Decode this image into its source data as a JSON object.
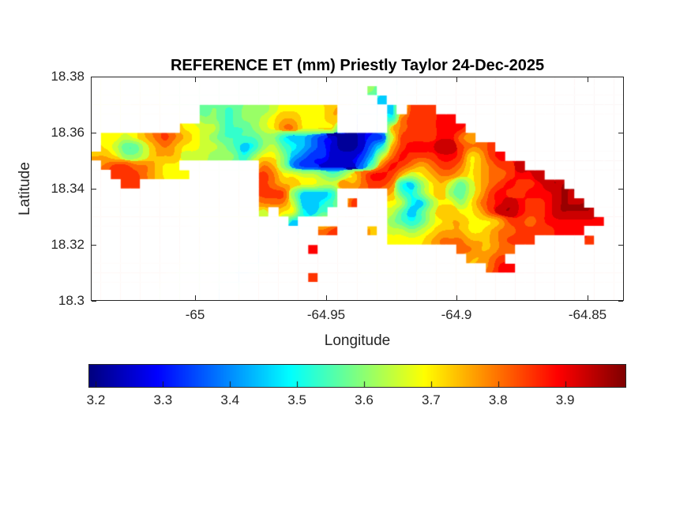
{
  "chart_data": {
    "type": "filled_contour_map",
    "title": "REFERENCE ET (mm) Priestly Taylor 24-Dec-2025",
    "xlabel": "Longitude",
    "ylabel": "Latitude",
    "units": "mm",
    "xlim": [
      -65.0399,
      -64.8361
    ],
    "ylim": [
      18.3,
      18.38
    ],
    "x_ticks": [
      {
        "v": -65,
        "label": "-65"
      },
      {
        "v": -64.95,
        "label": "-64.95"
      },
      {
        "v": -64.9,
        "label": "-64.9"
      },
      {
        "v": -64.85,
        "label": "-64.85"
      }
    ],
    "y_ticks": [
      {
        "v": 18.38,
        "label": "18.38"
      },
      {
        "v": 18.36,
        "label": "18.36"
      },
      {
        "v": 18.34,
        "label": "18.34"
      },
      {
        "v": 18.32,
        "label": "18.32"
      },
      {
        "v": 18.3,
        "label": "18.3"
      }
    ],
    "colormap": "jet",
    "contour_levels": 20,
    "colorbar": {
      "orientation": "horizontal",
      "vmin": 3.19,
      "vmax": 3.99,
      "ticks": [
        {
          "v": 3.2,
          "label": "3.2"
        },
        {
          "v": 3.3,
          "label": "3.3"
        },
        {
          "v": 3.4,
          "label": "3.4"
        },
        {
          "v": 3.5,
          "label": "3.5"
        },
        {
          "v": 3.6,
          "label": "3.6"
        },
        {
          "v": 3.7,
          "label": "3.7"
        },
        {
          "v": 3.8,
          "label": "3.8"
        },
        {
          "v": 3.9,
          "label": "3.9"
        }
      ]
    },
    "grid": {
      "note": "Reference ET (mm) raster estimated from contour colors; '.' = ocean (white). Row 0 = lat 18.38 (top).",
      "ncols": 54,
      "nrows": 24,
      "cell_values": {
        "0": 3.2,
        "1": 3.26,
        "2": 3.32,
        "3": 3.38,
        "4": 3.44,
        "5": 3.5,
        "6": 3.55,
        "7": 3.6,
        "8": 3.65,
        "9": 3.7,
        "a": 3.75,
        "b": 3.8,
        "c": 3.85,
        "d": 3.9,
        "e": 3.95
      },
      "rows": [
        "......................................................",
        "............................7.........................",
        ".............................4........................",
        "...........6766777899999a.....4.ccc...................",
        "...........77667789aa999a.....5bcccdd.................",
        ".........9988666789bb9999.....abcccddd................",
        ".9989abcba987666677544321001228ccccddba...............",
        ".98668aba998876457865432100135acdddeecbbc.............",
        "aa9778aaa888777579974322111248bdcccddc9acd............",
        ".bccbba99........ba7322111136bdcbabccb9abcce..........",
        "..cccba999.......cb99887679bddca89abba9abbcdde........",
        "...cc............cbaa9988babccb5479a868abcdccdee......",
        ".................ccc74445.....a6579a768acdccdddee.....",
        ".................bbb84456.c...985479979bcdedccdeee....",
        ".................8.99546......86468aa99aceedccdeeee...",
        "....................4.........765689aa999accbcdddddd..",
        ".......................bc...a.88789aaa99abbccccddd....",
        "..............................9999abbbaaabccc.....c...",
        "......................d..............bbaabb...........",
        "......................................aabc............",
        "........................................bdd...........",
        "......................c...............................",
        "......................................................",
        "......................................................"
      ]
    }
  }
}
